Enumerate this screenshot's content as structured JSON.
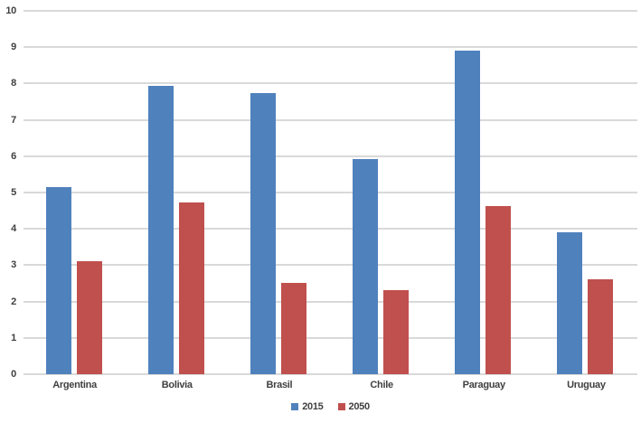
{
  "chart_data": {
    "type": "bar",
    "title": "",
    "xlabel": "",
    "ylabel": "",
    "categories": [
      "Argentina",
      "Bolivia",
      "Brasil",
      "Chile",
      "Paraguay",
      "Uruguay"
    ],
    "series": [
      {
        "name": "2015",
        "color": "#4F81BD",
        "values": [
          5.15,
          7.93,
          7.74,
          5.91,
          8.91,
          3.91
        ]
      },
      {
        "name": "2050",
        "color": "#C0504D",
        "values": [
          3.12,
          4.72,
          2.52,
          2.32,
          4.62,
          2.61
        ]
      }
    ],
    "ylim": [
      0,
      10
    ],
    "yticks": [
      0,
      1,
      2,
      3,
      4,
      5,
      6,
      7,
      8,
      9,
      10
    ],
    "grid": true,
    "gridline_color": "#D9D9D9",
    "label_color": "#404040",
    "legend_position": "bottom-center"
  }
}
